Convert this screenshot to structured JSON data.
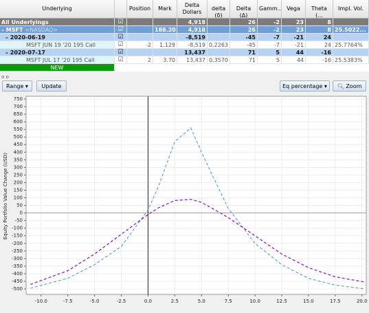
{
  "table": {
    "header": {
      "underlying": "Underlying",
      "position": "Position",
      "mark": "Mark",
      "delta_dollars": "Delta Dollars",
      "delta_small": "delta (δ)",
      "delta_big": "Delta (Δ)",
      "gamma": "Gamm...",
      "vega": "Vega",
      "theta": "Theta (...",
      "iv": "Impl. Vol."
    },
    "rows": [
      {
        "underlying": "All Underlyings",
        "delta_dollars": "4,918",
        "delta_big": "26",
        "gamma": "-2",
        "vega": "23",
        "theta": "8"
      },
      {
        "underlying": "– MSFT",
        "exchange": "<NASDAQ>",
        "mark": "188.20",
        "delta_dollars": "4,918",
        "delta_big": "26",
        "gamma": "-2",
        "vega": "23",
        "theta": "8",
        "iv": "25.5022..."
      },
      {
        "underlying": "– 2020-06-19",
        "delta_dollars": "-8,519",
        "delta_big": "-45",
        "gamma": "-7",
        "vega": "-21",
        "theta": "24"
      },
      {
        "underlying": "MSFT JUN 19 '20 195 Call",
        "position": "-2",
        "mark": "1.129",
        "delta_dollars": "-8,519",
        "delta_small": "0.2263",
        "delta_big": "-45",
        "gamma": "-7",
        "vega": "-21",
        "theta": "24",
        "iv": "25.7764%"
      },
      {
        "underlying": "– 2020-07-17",
        "delta_dollars": "13,437",
        "delta_big": "71",
        "gamma": "5",
        "vega": "44",
        "theta": "-16"
      },
      {
        "underlying": "MSFT JUL 17 '20 195 Call",
        "position": "2",
        "mark": "3.70",
        "delta_dollars": "13,437",
        "delta_small": "0.3570",
        "delta_big": "71",
        "gamma": "5",
        "vega": "44",
        "theta": "-16",
        "iv": "25.5383%"
      },
      {
        "underlying": "NEW"
      }
    ]
  },
  "toolbar": {
    "range": "Range ▾",
    "update": "Update",
    "mode": "Eq percentage ▾",
    "zoom": "Zoom"
  },
  "chart_data": {
    "type": "line",
    "y_label": "Equity Portfolio Value Change (USD)",
    "x": [
      -11,
      -7.5,
      -5,
      -2.5,
      0,
      1,
      2.5,
      4,
      5,
      6,
      7.5,
      10,
      12.5,
      15,
      17.5,
      20.3
    ],
    "series": [
      {
        "color": "#4a8fdc",
        "values": [
          -495,
          -430,
          -340,
          -220,
          20,
          180,
          470,
          560,
          400,
          250,
          30,
          -200,
          -340,
          -430,
          -475,
          -500
        ]
      },
      {
        "color": "#8b1fd0",
        "values": [
          -470,
          -380,
          -270,
          -140,
          -10,
          35,
          82,
          90,
          70,
          30,
          -30,
          -150,
          -270,
          -360,
          -420,
          -455
        ]
      }
    ],
    "xlim": [
      -11.4,
      20.4
    ],
    "ylim": [
      -536,
      768
    ],
    "xticks": [
      {
        "value": -10,
        "label": "-10.0"
      },
      -7.5,
      {
        "value": -5,
        "label": "-5.0"
      },
      -2.5,
      {
        "value": 0,
        "label": "0.0"
      },
      2.5,
      {
        "value": 5,
        "label": "5.0"
      },
      7.5,
      {
        "value": 10,
        "label": "10.0"
      },
      12.5,
      {
        "value": 15,
        "label": "15.0"
      },
      17.5,
      {
        "value": 20,
        "label": "20.0"
      }
    ],
    "yticks": [
      -500,
      -450,
      -400,
      -350,
      -300,
      -250,
      -200,
      -150,
      -100,
      -50,
      0,
      50,
      100,
      150,
      200,
      250,
      300,
      350,
      400,
      450,
      500,
      550,
      600,
      650,
      700,
      750
    ],
    "grid": true
  }
}
